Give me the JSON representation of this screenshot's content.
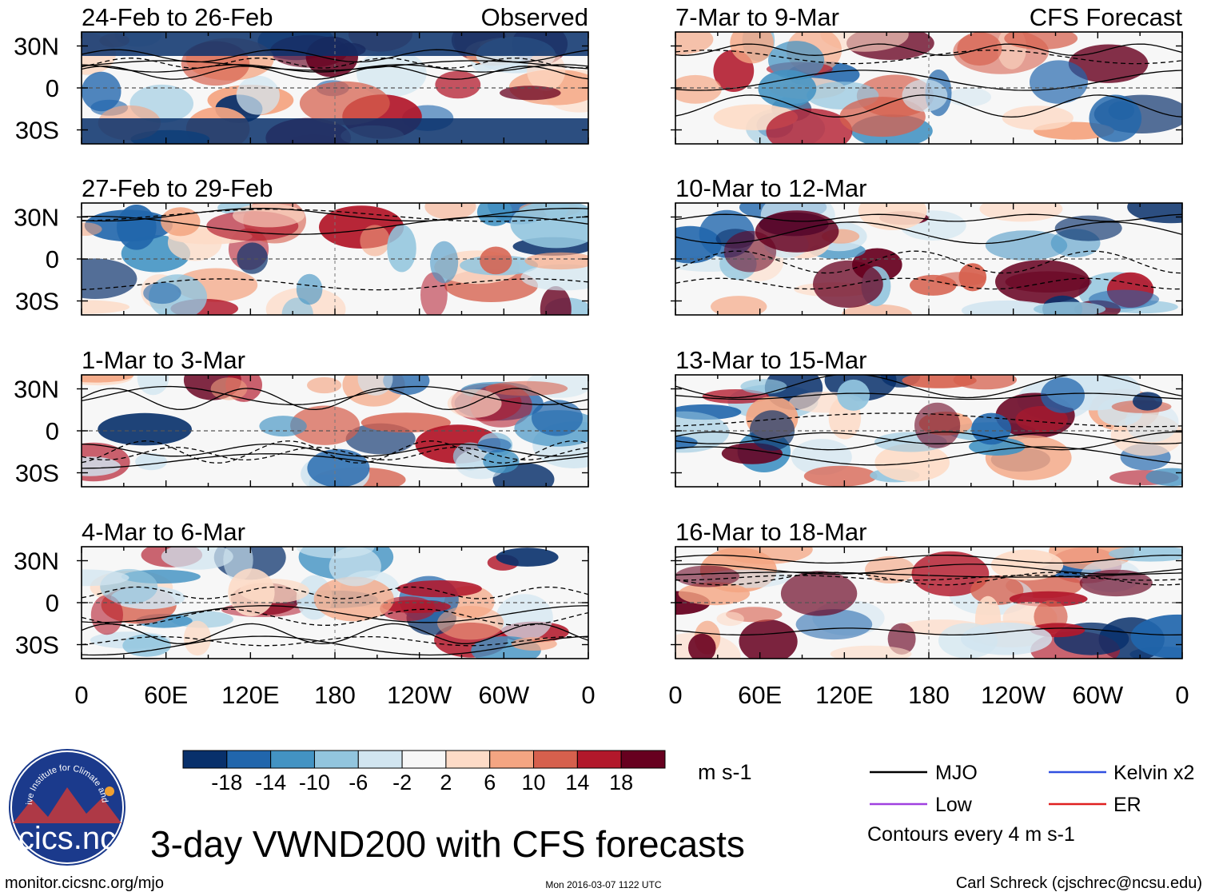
{
  "chart_data": {
    "type": "heatmap",
    "title": "3-day VWND200 with CFS forecasts",
    "variable": "VWND200",
    "units": "m s-1",
    "observed_label": "Observed",
    "forecast_label": "CFS Forecast",
    "y_ticks": [
      "30N",
      "0",
      "30S"
    ],
    "x_ticks": [
      "0",
      "60E",
      "120E",
      "180",
      "120W",
      "60W",
      "0"
    ],
    "x_range_deg_east": [
      0,
      360
    ],
    "y_range_deg": [
      -40,
      40
    ],
    "panels": [
      {
        "title": "24-Feb to 26-Feb",
        "source": "Observed"
      },
      {
        "title": "27-Feb to 29-Feb",
        "source": "Observed"
      },
      {
        "title": "1-Mar to 3-Mar",
        "source": "Observed"
      },
      {
        "title": "4-Mar to 6-Mar",
        "source": "Observed"
      },
      {
        "title": "7-Mar to 9-Mar",
        "source": "CFS Forecast"
      },
      {
        "title": "10-Mar to 12-Mar",
        "source": "CFS Forecast"
      },
      {
        "title": "13-Mar to 15-Mar",
        "source": "CFS Forecast"
      },
      {
        "title": "16-Mar to 18-Mar",
        "source": "CFS Forecast"
      }
    ],
    "colorbar": {
      "tick_labels": [
        "-18",
        "-14",
        "-10",
        "-6",
        "-2",
        "2",
        "6",
        "10",
        "14",
        "18"
      ],
      "colors": [
        "#08306b",
        "#2166ac",
        "#4393c3",
        "#92c5de",
        "#d1e5f0",
        "#f7f7f7",
        "#fddbc7",
        "#f4a582",
        "#d6604d",
        "#b2182b",
        "#67001f"
      ]
    },
    "legend": [
      {
        "label": "MJO",
        "color": "#000000"
      },
      {
        "label": "Kelvin x2",
        "color": "#3050e0"
      },
      {
        "label": "Low",
        "color": "#a040e0"
      },
      {
        "label": "ER",
        "color": "#e02020"
      }
    ],
    "contour_note": "Contours every 4 m s-1"
  },
  "footer": {
    "url": "monitor.cicsnc.org/mjo",
    "timestamp": "Mon 2016-03-07 1122 UTC",
    "author": "Carl Schreck (cjschrec@ncsu.edu)"
  },
  "logo": {
    "text": "cics.nc",
    "ring_text": "Cooperative Institute for Climate and Satellites"
  }
}
